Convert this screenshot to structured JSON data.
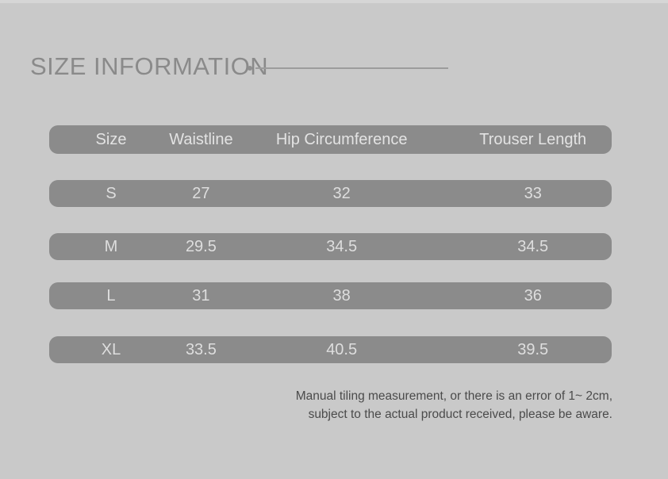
{
  "title": {
    "text": "SIZE INFORMATION"
  },
  "colors": {
    "background": "#c9c9c9",
    "bar": "#8b8b8b",
    "bar_text": "#dedede",
    "title_text": "#8a8a8a",
    "rule_line": "#9c9c9c",
    "footer_text": "#4b4b4b"
  },
  "chart_data": {
    "type": "table",
    "title": "SIZE INFORMATION",
    "columns": [
      "Size",
      "Waistline",
      "Hip Circumference",
      "Trouser Length"
    ],
    "rows": [
      [
        "S",
        "27",
        "32",
        "33"
      ],
      [
        "M",
        "29.5",
        "34.5",
        "34.5"
      ],
      [
        "L",
        "31",
        "38",
        "36"
      ],
      [
        "XL",
        "33.5",
        "40.5",
        "39.5"
      ]
    ],
    "layout": "horizontal gray rounded bars, one per row, header bar on top"
  },
  "footer": {
    "line1": "Manual tiling measurement, or there is an error of 1~ 2cm,",
    "line2": "subject to the actual product received, please be aware."
  }
}
